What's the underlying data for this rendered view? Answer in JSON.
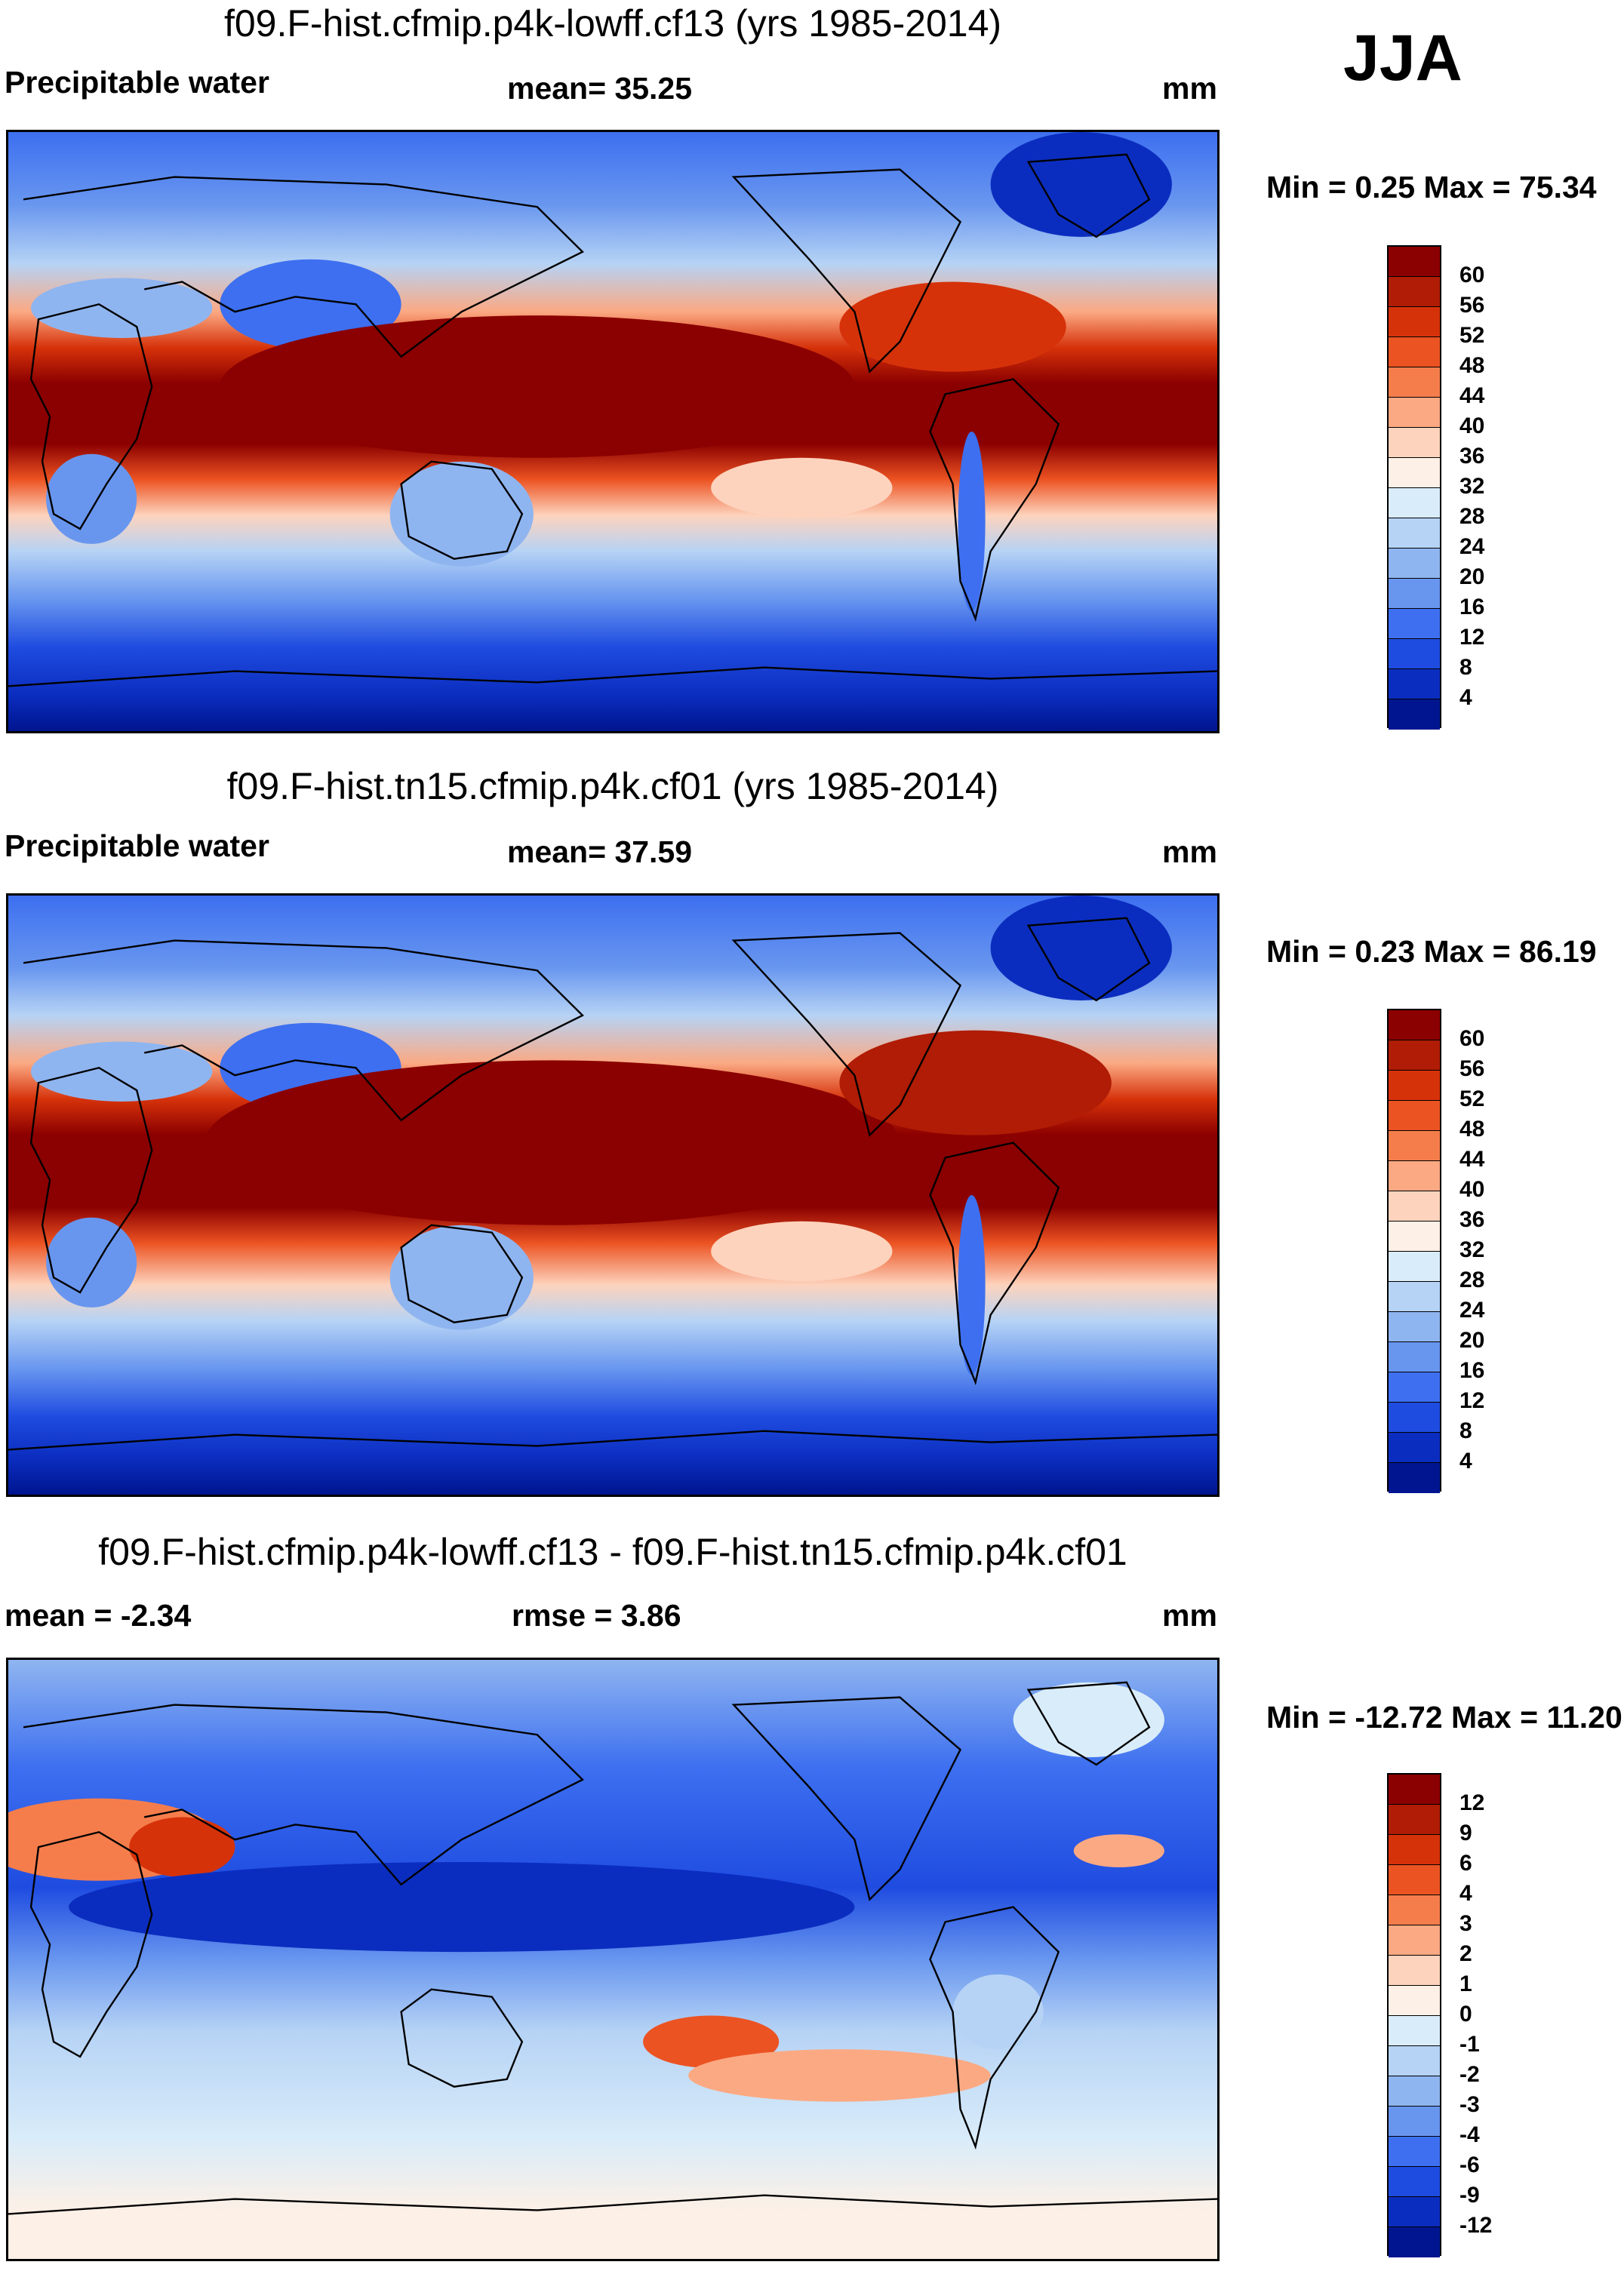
{
  "season": "JJA",
  "panels": [
    {
      "title": "f09.F-hist.cfmip.p4k-lowff.cf13 (yrs 1985-2014)",
      "left_label": "Precipitable water",
      "center_label": "mean=  35.25",
      "units": "mm",
      "minmax": "Min =   0.25 Max =  75.34",
      "kind": "field",
      "colorbar_ticks": [
        "60",
        "56",
        "52",
        "48",
        "44",
        "40",
        "36",
        "32",
        "28",
        "24",
        "20",
        "16",
        "12",
        "8",
        "4"
      ]
    },
    {
      "title": "f09.F-hist.tn15.cfmip.p4k.cf01 (yrs 1985-2014)",
      "left_label": "Precipitable water",
      "center_label": "mean=  37.59",
      "units": "mm",
      "minmax": "Min =   0.23 Max =  86.19",
      "kind": "field",
      "colorbar_ticks": [
        "60",
        "56",
        "52",
        "48",
        "44",
        "40",
        "36",
        "32",
        "28",
        "24",
        "20",
        "16",
        "12",
        "8",
        "4"
      ]
    },
    {
      "title": "f09.F-hist.cfmip.p4k-lowff.cf13 - f09.F-hist.tn15.cfmip.p4k.cf01",
      "left_label": "mean =  -2.34",
      "center_label": "rmse =   3.86",
      "units": "mm",
      "minmax": "Min = -12.72 Max =  11.20",
      "kind": "diff",
      "colorbar_ticks": [
        "12",
        "9",
        "6",
        "4",
        "3",
        "2",
        "1",
        "0",
        "-1",
        "-2",
        "-3",
        "-4",
        "-6",
        "-9",
        "-12"
      ]
    }
  ],
  "colors": {
    "field_scale": [
      "#8b0000",
      "#b01c05",
      "#d6320a",
      "#ec5322",
      "#f57d4c",
      "#fba983",
      "#fdd3bd",
      "#fdf0e6",
      "#d9ecf9",
      "#b6d3f5",
      "#8fb5f0",
      "#6896ef",
      "#3d6ff0",
      "#1f4ce0",
      "#0b2dbf",
      "#00158f"
    ],
    "diff_scale": [
      "#8b0000",
      "#b01c05",
      "#d6320a",
      "#ec5322",
      "#f57d4c",
      "#fba983",
      "#fdd3bd",
      "#fdf0e6",
      "#d9ecf9",
      "#b6d3f5",
      "#8fb5f0",
      "#6896ef",
      "#3d6ff0",
      "#1f4ce0",
      "#0b2dbf",
      "#00158f"
    ]
  }
}
